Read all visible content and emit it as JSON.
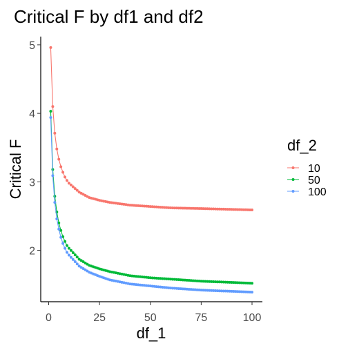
{
  "chart_data": {
    "type": "line",
    "title": "Critical F by df1 and df2",
    "xlabel": "df_1",
    "ylabel": "Critical F",
    "xlim": [
      0,
      100
    ],
    "ylim": [
      1.25,
      5.12
    ],
    "x_ticks": [
      0,
      25,
      50,
      75,
      100
    ],
    "y_ticks": [
      2,
      3,
      4,
      5
    ],
    "grid": false,
    "markers": true,
    "legend": {
      "title": "df_2",
      "placement": "right"
    },
    "series": [
      {
        "name": "10",
        "color": "#F8766D",
        "points": [
          [
            1,
            4.96
          ],
          [
            2,
            4.1
          ],
          [
            3,
            3.71
          ],
          [
            4,
            3.48
          ],
          [
            5,
            3.33
          ],
          [
            6,
            3.22
          ],
          [
            7,
            3.14
          ],
          [
            8,
            3.07
          ],
          [
            9,
            3.02
          ],
          [
            10,
            2.98
          ],
          [
            15,
            2.85
          ],
          [
            20,
            2.77
          ],
          [
            25,
            2.73
          ],
          [
            30,
            2.7
          ],
          [
            40,
            2.66
          ],
          [
            50,
            2.64
          ],
          [
            60,
            2.62
          ],
          [
            75,
            2.61
          ],
          [
            100,
            2.59
          ]
        ]
      },
      {
        "name": "50",
        "color": "#00BA38",
        "points": [
          [
            1,
            4.03
          ],
          [
            2,
            3.18
          ],
          [
            3,
            2.79
          ],
          [
            4,
            2.56
          ],
          [
            5,
            2.4
          ],
          [
            6,
            2.29
          ],
          [
            7,
            2.2
          ],
          [
            8,
            2.13
          ],
          [
            9,
            2.07
          ],
          [
            10,
            2.03
          ],
          [
            15,
            1.87
          ],
          [
            20,
            1.78
          ],
          [
            25,
            1.73
          ],
          [
            30,
            1.69
          ],
          [
            40,
            1.63
          ],
          [
            50,
            1.6
          ],
          [
            60,
            1.58
          ],
          [
            75,
            1.55
          ],
          [
            100,
            1.52
          ]
        ]
      },
      {
        "name": "100",
        "color": "#619CFF",
        "points": [
          [
            1,
            3.94
          ],
          [
            2,
            3.09
          ],
          [
            3,
            2.7
          ],
          [
            4,
            2.46
          ],
          [
            5,
            2.31
          ],
          [
            6,
            2.19
          ],
          [
            7,
            2.1
          ],
          [
            8,
            2.03
          ],
          [
            9,
            1.97
          ],
          [
            10,
            1.93
          ],
          [
            15,
            1.77
          ],
          [
            20,
            1.68
          ],
          [
            25,
            1.62
          ],
          [
            30,
            1.57
          ],
          [
            40,
            1.51
          ],
          [
            50,
            1.48
          ],
          [
            60,
            1.45
          ],
          [
            75,
            1.42
          ],
          [
            100,
            1.39
          ]
        ]
      }
    ]
  }
}
